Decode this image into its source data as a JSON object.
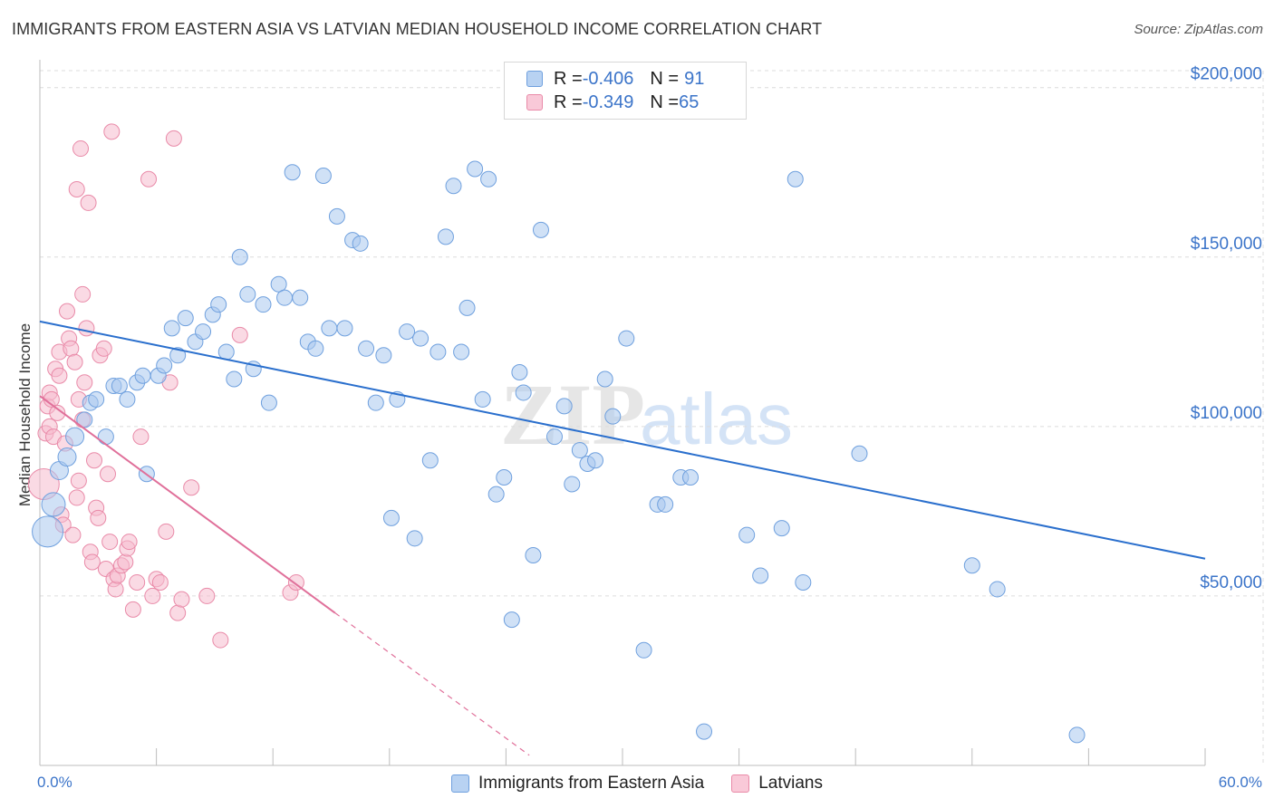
{
  "title": "IMMIGRANTS FROM EASTERN ASIA VS LATVIAN MEDIAN HOUSEHOLD INCOME CORRELATION CHART",
  "source": "Source: ZipAtlas.com",
  "watermark": {
    "zip": "ZIP",
    "atlas": "atlas"
  },
  "colors": {
    "blue_fill": "#a9c8ef",
    "blue_stroke": "#6fa0de",
    "blue_line": "#2a6fcd",
    "pink_fill": "#f6bccd",
    "pink_stroke": "#e98aa8",
    "pink_line": "#e0709a",
    "tick_text": "#3b74c9",
    "grid": "#dcdcdc"
  },
  "legend": {
    "rows": [
      {
        "r_label": "R = ",
        "r_value": "-0.406",
        "n_label": "N = ",
        "n_value": "91",
        "color": "blue"
      },
      {
        "r_label": "R = ",
        "r_value": "-0.349",
        "n_label": "N = ",
        "n_value": "65",
        "color": "pink"
      }
    ]
  },
  "bottom_legend": [
    "Immigrants from Eastern Asia",
    "Latvians"
  ],
  "chart_data": {
    "type": "scatter",
    "xlabel": "",
    "ylabel": "Median Household Income",
    "x_ticks": [
      "0.0%",
      "60.0%"
    ],
    "y_ticks": [
      "$50,000",
      "$100,000",
      "$150,000",
      "$200,000"
    ],
    "xlim": [
      0,
      60
    ],
    "ylim": [
      0,
      205000
    ],
    "grid": true,
    "legend_position": "top-center",
    "series": [
      {
        "name": "Immigrants from Eastern Asia",
        "color": "#a9c8ef",
        "trend": {
          "x": [
            0,
            60
          ],
          "y": [
            131000,
            61000
          ]
        },
        "points": [
          [
            0.4,
            69000,
            4
          ],
          [
            0.7,
            77000,
            3
          ],
          [
            1.0,
            87000,
            2
          ],
          [
            1.4,
            91000,
            2
          ],
          [
            1.8,
            97000,
            2
          ],
          [
            2.3,
            102000,
            1
          ],
          [
            2.6,
            107000,
            1
          ],
          [
            2.9,
            108000,
            1
          ],
          [
            3.4,
            97000,
            1
          ],
          [
            3.8,
            112000,
            1
          ],
          [
            4.1,
            112000,
            1
          ],
          [
            4.5,
            108000,
            1
          ],
          [
            5.0,
            113000,
            1
          ],
          [
            5.3,
            115000,
            1
          ],
          [
            5.5,
            86000,
            1
          ],
          [
            6.1,
            115000,
            1
          ],
          [
            6.4,
            118000,
            1
          ],
          [
            6.8,
            129000,
            1
          ],
          [
            7.1,
            121000,
            1
          ],
          [
            7.5,
            132000,
            1
          ],
          [
            8.0,
            125000,
            1
          ],
          [
            8.4,
            128000,
            1
          ],
          [
            8.9,
            133000,
            1
          ],
          [
            9.2,
            136000,
            1
          ],
          [
            9.6,
            122000,
            1
          ],
          [
            10.0,
            114000,
            1
          ],
          [
            10.3,
            150000,
            1
          ],
          [
            10.7,
            139000,
            1
          ],
          [
            11.0,
            117000,
            1
          ],
          [
            11.5,
            136000,
            1
          ],
          [
            11.8,
            107000,
            1
          ],
          [
            12.3,
            142000,
            1
          ],
          [
            12.6,
            138000,
            1
          ],
          [
            13.0,
            175000,
            1
          ],
          [
            13.4,
            138000,
            1
          ],
          [
            13.8,
            125000,
            1
          ],
          [
            14.2,
            123000,
            1
          ],
          [
            14.6,
            174000,
            1
          ],
          [
            14.9,
            129000,
            1
          ],
          [
            15.3,
            162000,
            1
          ],
          [
            15.7,
            129000,
            1
          ],
          [
            16.1,
            155000,
            1
          ],
          [
            16.5,
            154000,
            1
          ],
          [
            16.8,
            123000,
            1
          ],
          [
            17.3,
            107000,
            1
          ],
          [
            17.7,
            121000,
            1
          ],
          [
            18.1,
            73000,
            1
          ],
          [
            18.4,
            108000,
            1
          ],
          [
            18.9,
            128000,
            1
          ],
          [
            19.3,
            67000,
            1
          ],
          [
            19.6,
            126000,
            1
          ],
          [
            20.1,
            90000,
            1
          ],
          [
            20.5,
            122000,
            1
          ],
          [
            20.9,
            156000,
            1
          ],
          [
            21.3,
            171000,
            1
          ],
          [
            21.7,
            122000,
            1
          ],
          [
            22.0,
            135000,
            1
          ],
          [
            22.4,
            176000,
            1
          ],
          [
            22.8,
            108000,
            1
          ],
          [
            23.1,
            173000,
            1
          ],
          [
            23.5,
            80000,
            1
          ],
          [
            23.9,
            85000,
            1
          ],
          [
            24.3,
            43000,
            1
          ],
          [
            24.7,
            116000,
            1
          ],
          [
            24.9,
            110000,
            1
          ],
          [
            25.4,
            62000,
            1
          ],
          [
            25.8,
            158000,
            1
          ],
          [
            26.5,
            97000,
            1
          ],
          [
            27.0,
            106000,
            1
          ],
          [
            27.4,
            83000,
            1
          ],
          [
            27.8,
            93000,
            1
          ],
          [
            28.2,
            89000,
            1
          ],
          [
            28.6,
            90000,
            1
          ],
          [
            29.1,
            114000,
            1
          ],
          [
            29.5,
            103000,
            1
          ],
          [
            30.2,
            126000,
            1
          ],
          [
            31.1,
            34000,
            1
          ],
          [
            31.8,
            77000,
            1
          ],
          [
            32.2,
            77000,
            1
          ],
          [
            33.0,
            85000,
            1
          ],
          [
            33.5,
            85000,
            1
          ],
          [
            34.2,
            10000,
            1
          ],
          [
            36.4,
            68000,
            1
          ],
          [
            37.1,
            56000,
            1
          ],
          [
            38.2,
            70000,
            1
          ],
          [
            38.9,
            173000,
            1
          ],
          [
            39.3,
            54000,
            1
          ],
          [
            42.2,
            92000,
            1
          ],
          [
            48.0,
            59000,
            1
          ],
          [
            49.3,
            52000,
            1
          ],
          [
            53.4,
            9000,
            1
          ]
        ]
      },
      {
        "name": "Latvians",
        "color": "#f6bccd",
        "trend": {
          "x": [
            0,
            15.2
          ],
          "y": [
            109000,
            45000
          ]
        },
        "trend_dashed": {
          "x": [
            15.2,
            25.2
          ],
          "y": [
            45000,
            3000
          ]
        },
        "points": [
          [
            0.2,
            83000,
            4
          ],
          [
            0.3,
            98000,
            1
          ],
          [
            0.4,
            106000,
            1
          ],
          [
            0.5,
            110000,
            1
          ],
          [
            0.5,
            100000,
            1
          ],
          [
            0.6,
            108000,
            1
          ],
          [
            0.7,
            97000,
            1
          ],
          [
            0.8,
            117000,
            1
          ],
          [
            0.9,
            104000,
            1
          ],
          [
            1.0,
            122000,
            1
          ],
          [
            1.0,
            115000,
            1
          ],
          [
            1.1,
            74000,
            1
          ],
          [
            1.2,
            71000,
            1
          ],
          [
            1.3,
            95000,
            1
          ],
          [
            1.4,
            134000,
            1
          ],
          [
            1.5,
            126000,
            1
          ],
          [
            1.6,
            123000,
            1
          ],
          [
            1.7,
            68000,
            1
          ],
          [
            1.8,
            119000,
            1
          ],
          [
            1.9,
            79000,
            1
          ],
          [
            1.9,
            170000,
            1
          ],
          [
            2.0,
            84000,
            1
          ],
          [
            2.0,
            108000,
            1
          ],
          [
            2.1,
            182000,
            1
          ],
          [
            2.2,
            139000,
            1
          ],
          [
            2.2,
            102000,
            1
          ],
          [
            2.3,
            113000,
            1
          ],
          [
            2.4,
            129000,
            1
          ],
          [
            2.5,
            166000,
            1
          ],
          [
            2.6,
            63000,
            1
          ],
          [
            2.7,
            60000,
            1
          ],
          [
            2.8,
            90000,
            1
          ],
          [
            2.9,
            76000,
            1
          ],
          [
            3.0,
            73000,
            1
          ],
          [
            3.1,
            121000,
            1
          ],
          [
            3.3,
            123000,
            1
          ],
          [
            3.4,
            58000,
            1
          ],
          [
            3.5,
            86000,
            1
          ],
          [
            3.6,
            66000,
            1
          ],
          [
            3.7,
            187000,
            1
          ],
          [
            3.8,
            55000,
            1
          ],
          [
            3.9,
            52000,
            1
          ],
          [
            4.0,
            56000,
            1
          ],
          [
            4.2,
            59000,
            1
          ],
          [
            4.4,
            60000,
            1
          ],
          [
            4.5,
            64000,
            1
          ],
          [
            4.6,
            66000,
            1
          ],
          [
            4.8,
            46000,
            1
          ],
          [
            5.0,
            54000,
            1
          ],
          [
            5.2,
            97000,
            1
          ],
          [
            5.6,
            173000,
            1
          ],
          [
            5.8,
            50000,
            1
          ],
          [
            6.0,
            55000,
            1
          ],
          [
            6.2,
            54000,
            1
          ],
          [
            6.5,
            69000,
            1
          ],
          [
            6.7,
            113000,
            1
          ],
          [
            6.9,
            185000,
            1
          ],
          [
            7.1,
            45000,
            1
          ],
          [
            7.3,
            49000,
            1
          ],
          [
            7.8,
            82000,
            1
          ],
          [
            8.6,
            50000,
            1
          ],
          [
            9.3,
            37000,
            1
          ],
          [
            10.3,
            127000,
            1
          ],
          [
            12.9,
            51000,
            1
          ],
          [
            13.2,
            54000,
            1
          ]
        ]
      }
    ]
  }
}
